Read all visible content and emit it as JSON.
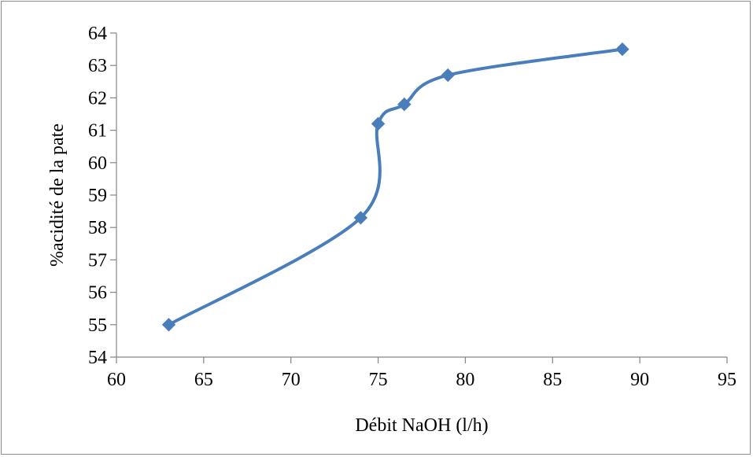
{
  "chart_data": {
    "type": "scatter",
    "title": "",
    "xlabel": "Débit NaOH (l/h)",
    "ylabel": "%acidité de la pate",
    "xlim": [
      60,
      95
    ],
    "ylim": [
      54,
      64
    ],
    "xticks": [
      60,
      65,
      70,
      75,
      80,
      85,
      90,
      95
    ],
    "yticks": [
      54,
      55,
      56,
      57,
      58,
      59,
      60,
      61,
      62,
      63,
      64
    ],
    "grid": false,
    "legend": "none",
    "smoothed_line": true,
    "series": [
      {
        "x": [
          63,
          74,
          75,
          76.5,
          79,
          89
        ],
        "y": [
          55,
          58.3,
          61.2,
          61.8,
          62.7,
          63.5
        ],
        "color": "#4a7ebb",
        "marker": "diamond"
      }
    ]
  }
}
